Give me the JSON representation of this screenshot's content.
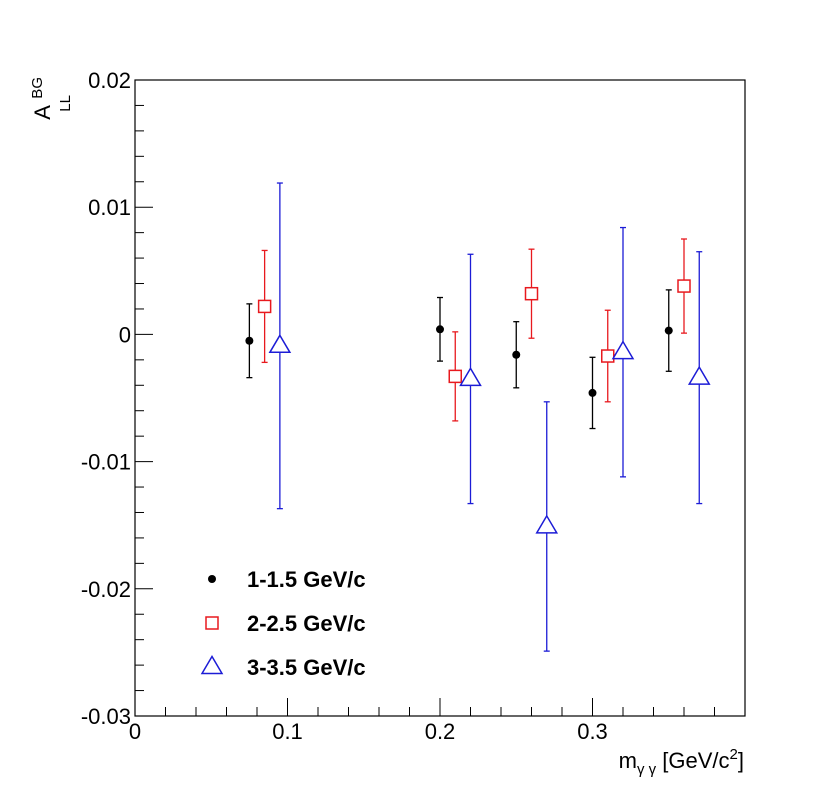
{
  "chart_data": {
    "type": "scatter",
    "title": "",
    "ylabel": {
      "main": "A",
      "sup": "BG",
      "sub": "LL"
    },
    "xlabel": {
      "main": "m",
      "sub": "γ γ",
      "unit_pre": " [GeV/c",
      "unit_sup": "2",
      "unit_post": "]"
    },
    "xlim": [
      0,
      0.4
    ],
    "ylim": [
      -0.03,
      0.02
    ],
    "x_ticks": [
      {
        "value": 0,
        "label": "0"
      },
      {
        "value": 0.1,
        "label": "0.1"
      },
      {
        "value": 0.2,
        "label": "0.2"
      },
      {
        "value": 0.3,
        "label": "0.3"
      }
    ],
    "y_ticks": [
      {
        "value": 0.02,
        "label": "0.02"
      },
      {
        "value": 0.01,
        "label": "0.01"
      },
      {
        "value": 0,
        "label": "0"
      },
      {
        "value": -0.01,
        "label": "-0.01"
      },
      {
        "value": -0.02,
        "label": "-0.02"
      },
      {
        "value": -0.03,
        "label": "-0.03"
      }
    ],
    "grid": false,
    "legend_position": "bottom-left",
    "series": [
      {
        "name": "1-1.5 GeV/c",
        "marker": "filled-circle",
        "color": "#000000",
        "x": [
          0.075,
          0.2,
          0.25,
          0.3,
          0.35
        ],
        "y": [
          -0.0005,
          0.0004,
          -0.0016,
          -0.0046,
          0.0003
        ],
        "err": [
          0.0029,
          0.0025,
          0.0026,
          0.0028,
          0.0032
        ]
      },
      {
        "name": "2-2.5 GeV/c",
        "marker": "open-square",
        "color": "#e8191e",
        "x": [
          0.085,
          0.21,
          0.26,
          0.31,
          0.36
        ],
        "y": [
          0.0022,
          -0.0033,
          0.0032,
          -0.0017,
          0.0038
        ],
        "err": [
          0.0044,
          0.0035,
          0.0035,
          0.0036,
          0.0037
        ]
      },
      {
        "name": "3-3.5 GeV/c",
        "marker": "open-triangle",
        "color": "#1c1cd6",
        "x": [
          0.095,
          0.22,
          0.27,
          0.32,
          0.37
        ],
        "y": [
          -0.0009,
          -0.0035,
          -0.0151,
          -0.0014,
          -0.0034
        ],
        "err": [
          0.0128,
          0.0098,
          0.0098,
          0.0098,
          0.0099
        ]
      }
    ]
  }
}
